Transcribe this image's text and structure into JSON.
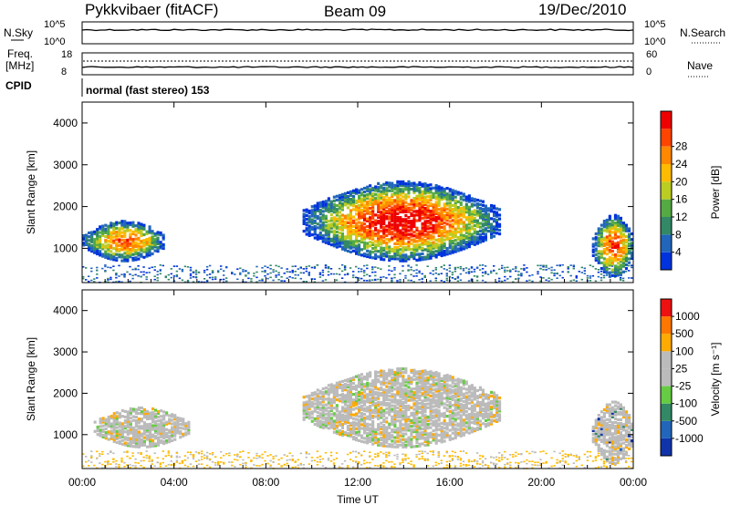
{
  "header": {
    "radar": "Pykkvibaer (fitACF)",
    "beam": "Beam 09",
    "date": "19/Dec/2010"
  },
  "panels": {
    "nsky_label": "N.Sky",
    "nsearch_label": "N.Search",
    "left_ticks_top": [
      "10^5",
      "10^0"
    ],
    "right_ticks_top": [
      "10^5",
      "10^0"
    ],
    "freq_label_1": "Freq.",
    "freq_label_2": "[MHz]",
    "freq_ticks": [
      "18",
      "8"
    ],
    "nave_label": "Nave",
    "nave_ticks": [
      "60",
      "0"
    ],
    "cpid_label": "CPID",
    "cpid_text": "normal (fast stereo) 153"
  },
  "colors": {
    "power": [
      "#0033dd",
      "#2266bb",
      "#338866",
      "#55aa44",
      "#bbcc22",
      "#ffbb00",
      "#ff8800",
      "#ff4400",
      "#ee0000"
    ],
    "velocity": [
      "#1133aa",
      "#2266bb",
      "#338866",
      "#66cc44",
      "#bbbbbb",
      "#bbbbbb",
      "#ffaa00",
      "#ff7700",
      "#ee1111"
    ]
  },
  "chart_data": [
    {
      "type": "heatmap",
      "name": "power",
      "ylabel": "Slant Range [km]",
      "y_ticks": [
        1000,
        2000,
        3000,
        4000
      ],
      "ylim": [
        180,
        4500
      ],
      "colorbar_label": "Power [dB]",
      "colorbar_ticks": [
        "4",
        "8",
        "12",
        "16",
        "20",
        "24",
        "28"
      ],
      "regions": [
        {
          "t0": 0.0,
          "t1": 3.6,
          "r0": 700,
          "r1": 1650,
          "peak": 0.75
        },
        {
          "t0": 9.6,
          "t1": 18.2,
          "r0": 700,
          "r1": 2600,
          "peak": 0.95
        },
        {
          "t0": 22.2,
          "t1": 24.0,
          "r0": 300,
          "r1": 1800,
          "peak": 0.8
        }
      ]
    },
    {
      "type": "heatmap",
      "name": "velocity",
      "ylabel": "Slant Range [km]",
      "y_ticks": [
        1000,
        2000,
        3000,
        4000
      ],
      "ylim": [
        180,
        4500
      ],
      "colorbar_label": "Velocity [m s⁻¹]",
      "colorbar_ticks": [
        "1000",
        "500",
        "100",
        "25",
        "-25",
        "-100",
        "-500",
        "-1000"
      ],
      "regions": [
        {
          "t0": 0.5,
          "t1": 4.6,
          "r0": 700,
          "r1": 1650,
          "level": 0.5
        },
        {
          "t0": 9.6,
          "t1": 18.2,
          "r0": 700,
          "r1": 2600,
          "level": 0.5
        },
        {
          "t0": 22.2,
          "t1": 24.0,
          "r0": 300,
          "r1": 1800,
          "level": 0.85
        }
      ]
    }
  ],
  "x_axis": {
    "label": "Time UT",
    "ticks": [
      "00:00",
      "04:00",
      "08:00",
      "12:00",
      "16:00",
      "20:00",
      "00:00"
    ]
  }
}
